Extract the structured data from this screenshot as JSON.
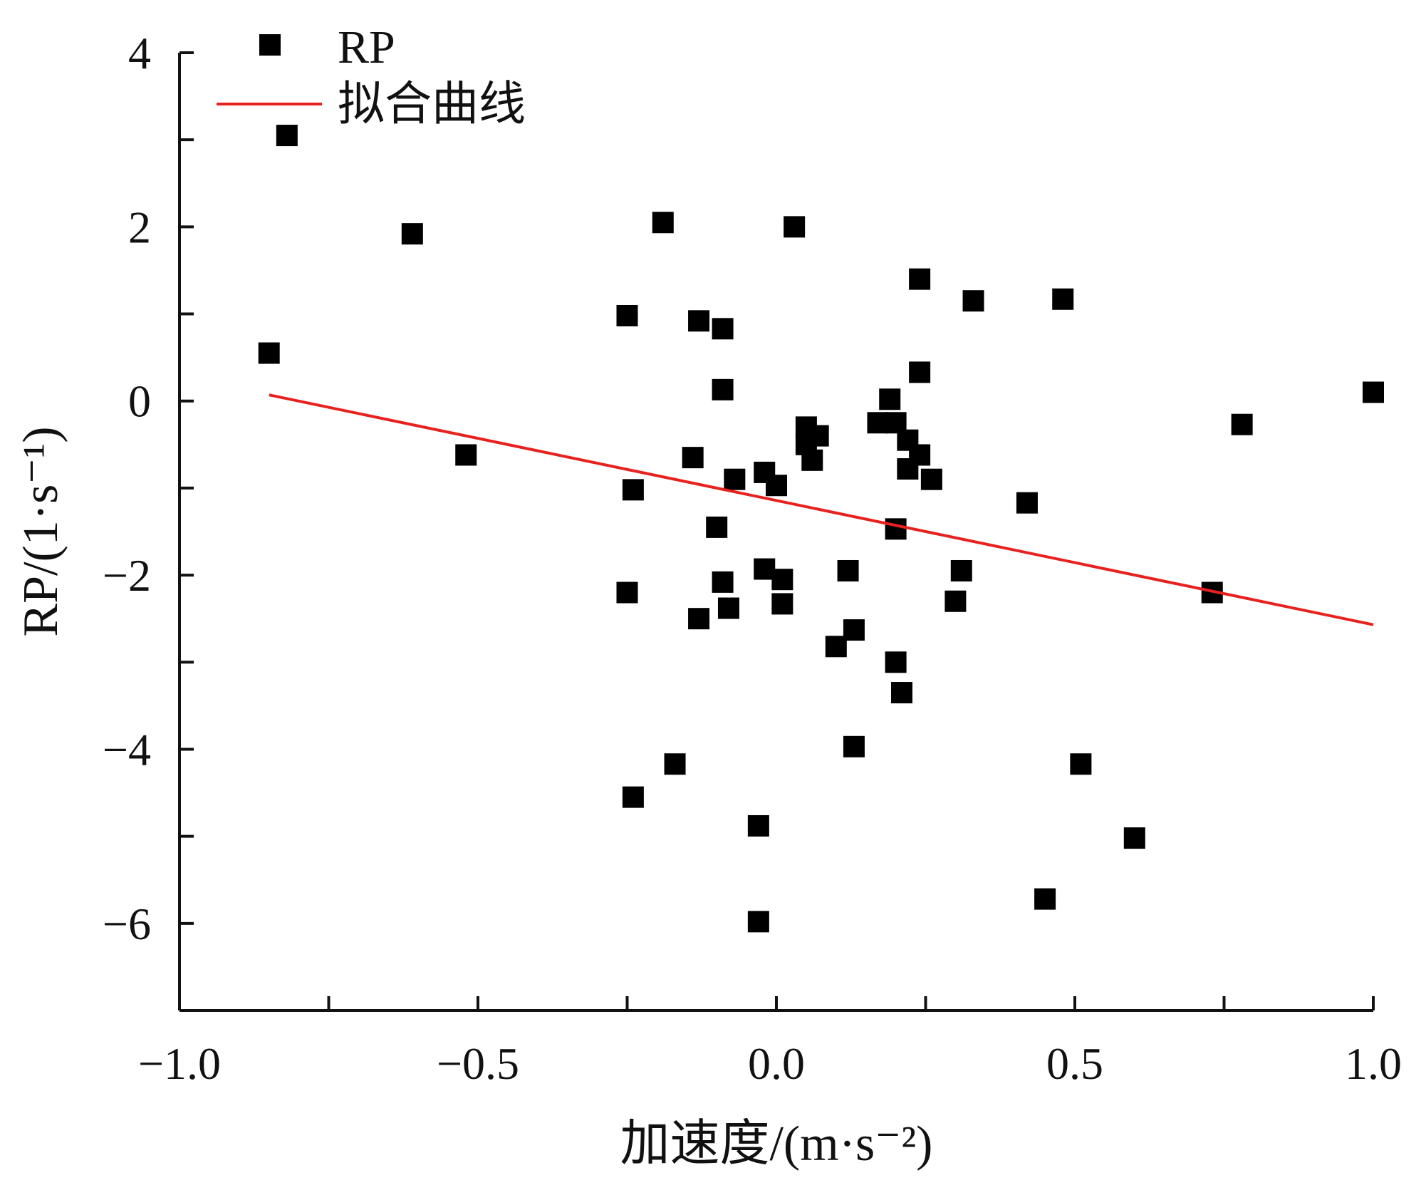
{
  "chart_data": {
    "type": "scatter",
    "xlabel": "加速度/(m·s⁻²)",
    "ylabel": "RP/(1·s⁻¹)",
    "xlim": [
      -1.0,
      1.0
    ],
    "ylim": [
      -7,
      4
    ],
    "xticks": [
      -1.0,
      -0.5,
      0.0,
      0.5,
      1.0
    ],
    "xtick_labels": [
      "−1.0",
      "−0.5",
      "0.0",
      "0.5",
      "1.0"
    ],
    "yticks": [
      -6,
      -4,
      -2,
      0,
      2,
      4
    ],
    "ytick_labels": [
      "−6",
      "−4",
      "−2",
      "0",
      "2",
      "4"
    ],
    "grid": false,
    "legend_position": "top-left",
    "series": [
      {
        "name": "RP",
        "kind": "scatter",
        "marker": "square",
        "color": "#000000",
        "points": [
          [
            -0.82,
            3.05
          ],
          [
            -0.85,
            0.55
          ],
          [
            -0.61,
            1.92
          ],
          [
            -0.52,
            -0.62
          ],
          [
            -0.25,
            0.98
          ],
          [
            -0.24,
            -1.02
          ],
          [
            -0.25,
            -2.2
          ],
          [
            -0.24,
            -4.55
          ],
          [
            -0.19,
            2.05
          ],
          [
            -0.17,
            -4.17
          ],
          [
            -0.14,
            -0.65
          ],
          [
            -0.13,
            0.92
          ],
          [
            -0.13,
            -2.5
          ],
          [
            -0.09,
            0.83
          ],
          [
            -0.09,
            0.13
          ],
          [
            -0.1,
            -1.45
          ],
          [
            -0.09,
            -2.08
          ],
          [
            -0.08,
            -2.38
          ],
          [
            -0.07,
            -0.9
          ],
          [
            -0.03,
            -4.88
          ],
          [
            -0.03,
            -5.98
          ],
          [
            -0.02,
            -0.82
          ],
          [
            -0.02,
            -1.93
          ],
          [
            0.0,
            -0.97
          ],
          [
            0.01,
            -2.05
          ],
          [
            0.01,
            -2.33
          ],
          [
            0.03,
            2.0
          ],
          [
            0.05,
            -0.3
          ],
          [
            0.05,
            -0.5
          ],
          [
            0.06,
            -0.68
          ],
          [
            0.07,
            -0.4
          ],
          [
            0.1,
            -2.82
          ],
          [
            0.12,
            -1.95
          ],
          [
            0.13,
            -2.63
          ],
          [
            0.13,
            -3.97
          ],
          [
            0.17,
            -0.25
          ],
          [
            0.19,
            0.02
          ],
          [
            0.2,
            -1.47
          ],
          [
            0.2,
            -3.0
          ],
          [
            0.2,
            -0.25
          ],
          [
            0.21,
            -3.35
          ],
          [
            0.22,
            -0.78
          ],
          [
            0.22,
            -0.45
          ],
          [
            0.24,
            1.4
          ],
          [
            0.24,
            0.33
          ],
          [
            0.24,
            -0.62
          ],
          [
            0.26,
            -0.9
          ],
          [
            0.3,
            -2.3
          ],
          [
            0.31,
            -1.95
          ],
          [
            0.33,
            1.15
          ],
          [
            0.42,
            -1.17
          ],
          [
            0.45,
            -5.72
          ],
          [
            0.48,
            1.17
          ],
          [
            0.51,
            -4.17
          ],
          [
            0.6,
            -5.02
          ],
          [
            0.73,
            -2.2
          ],
          [
            0.78,
            -0.27
          ],
          [
            1.0,
            0.1
          ]
        ]
      },
      {
        "name": "拟合曲线",
        "kind": "line",
        "color": "#e8211e",
        "points": [
          [
            -0.85,
            0.07
          ],
          [
            1.0,
            -2.57
          ]
        ]
      }
    ]
  }
}
